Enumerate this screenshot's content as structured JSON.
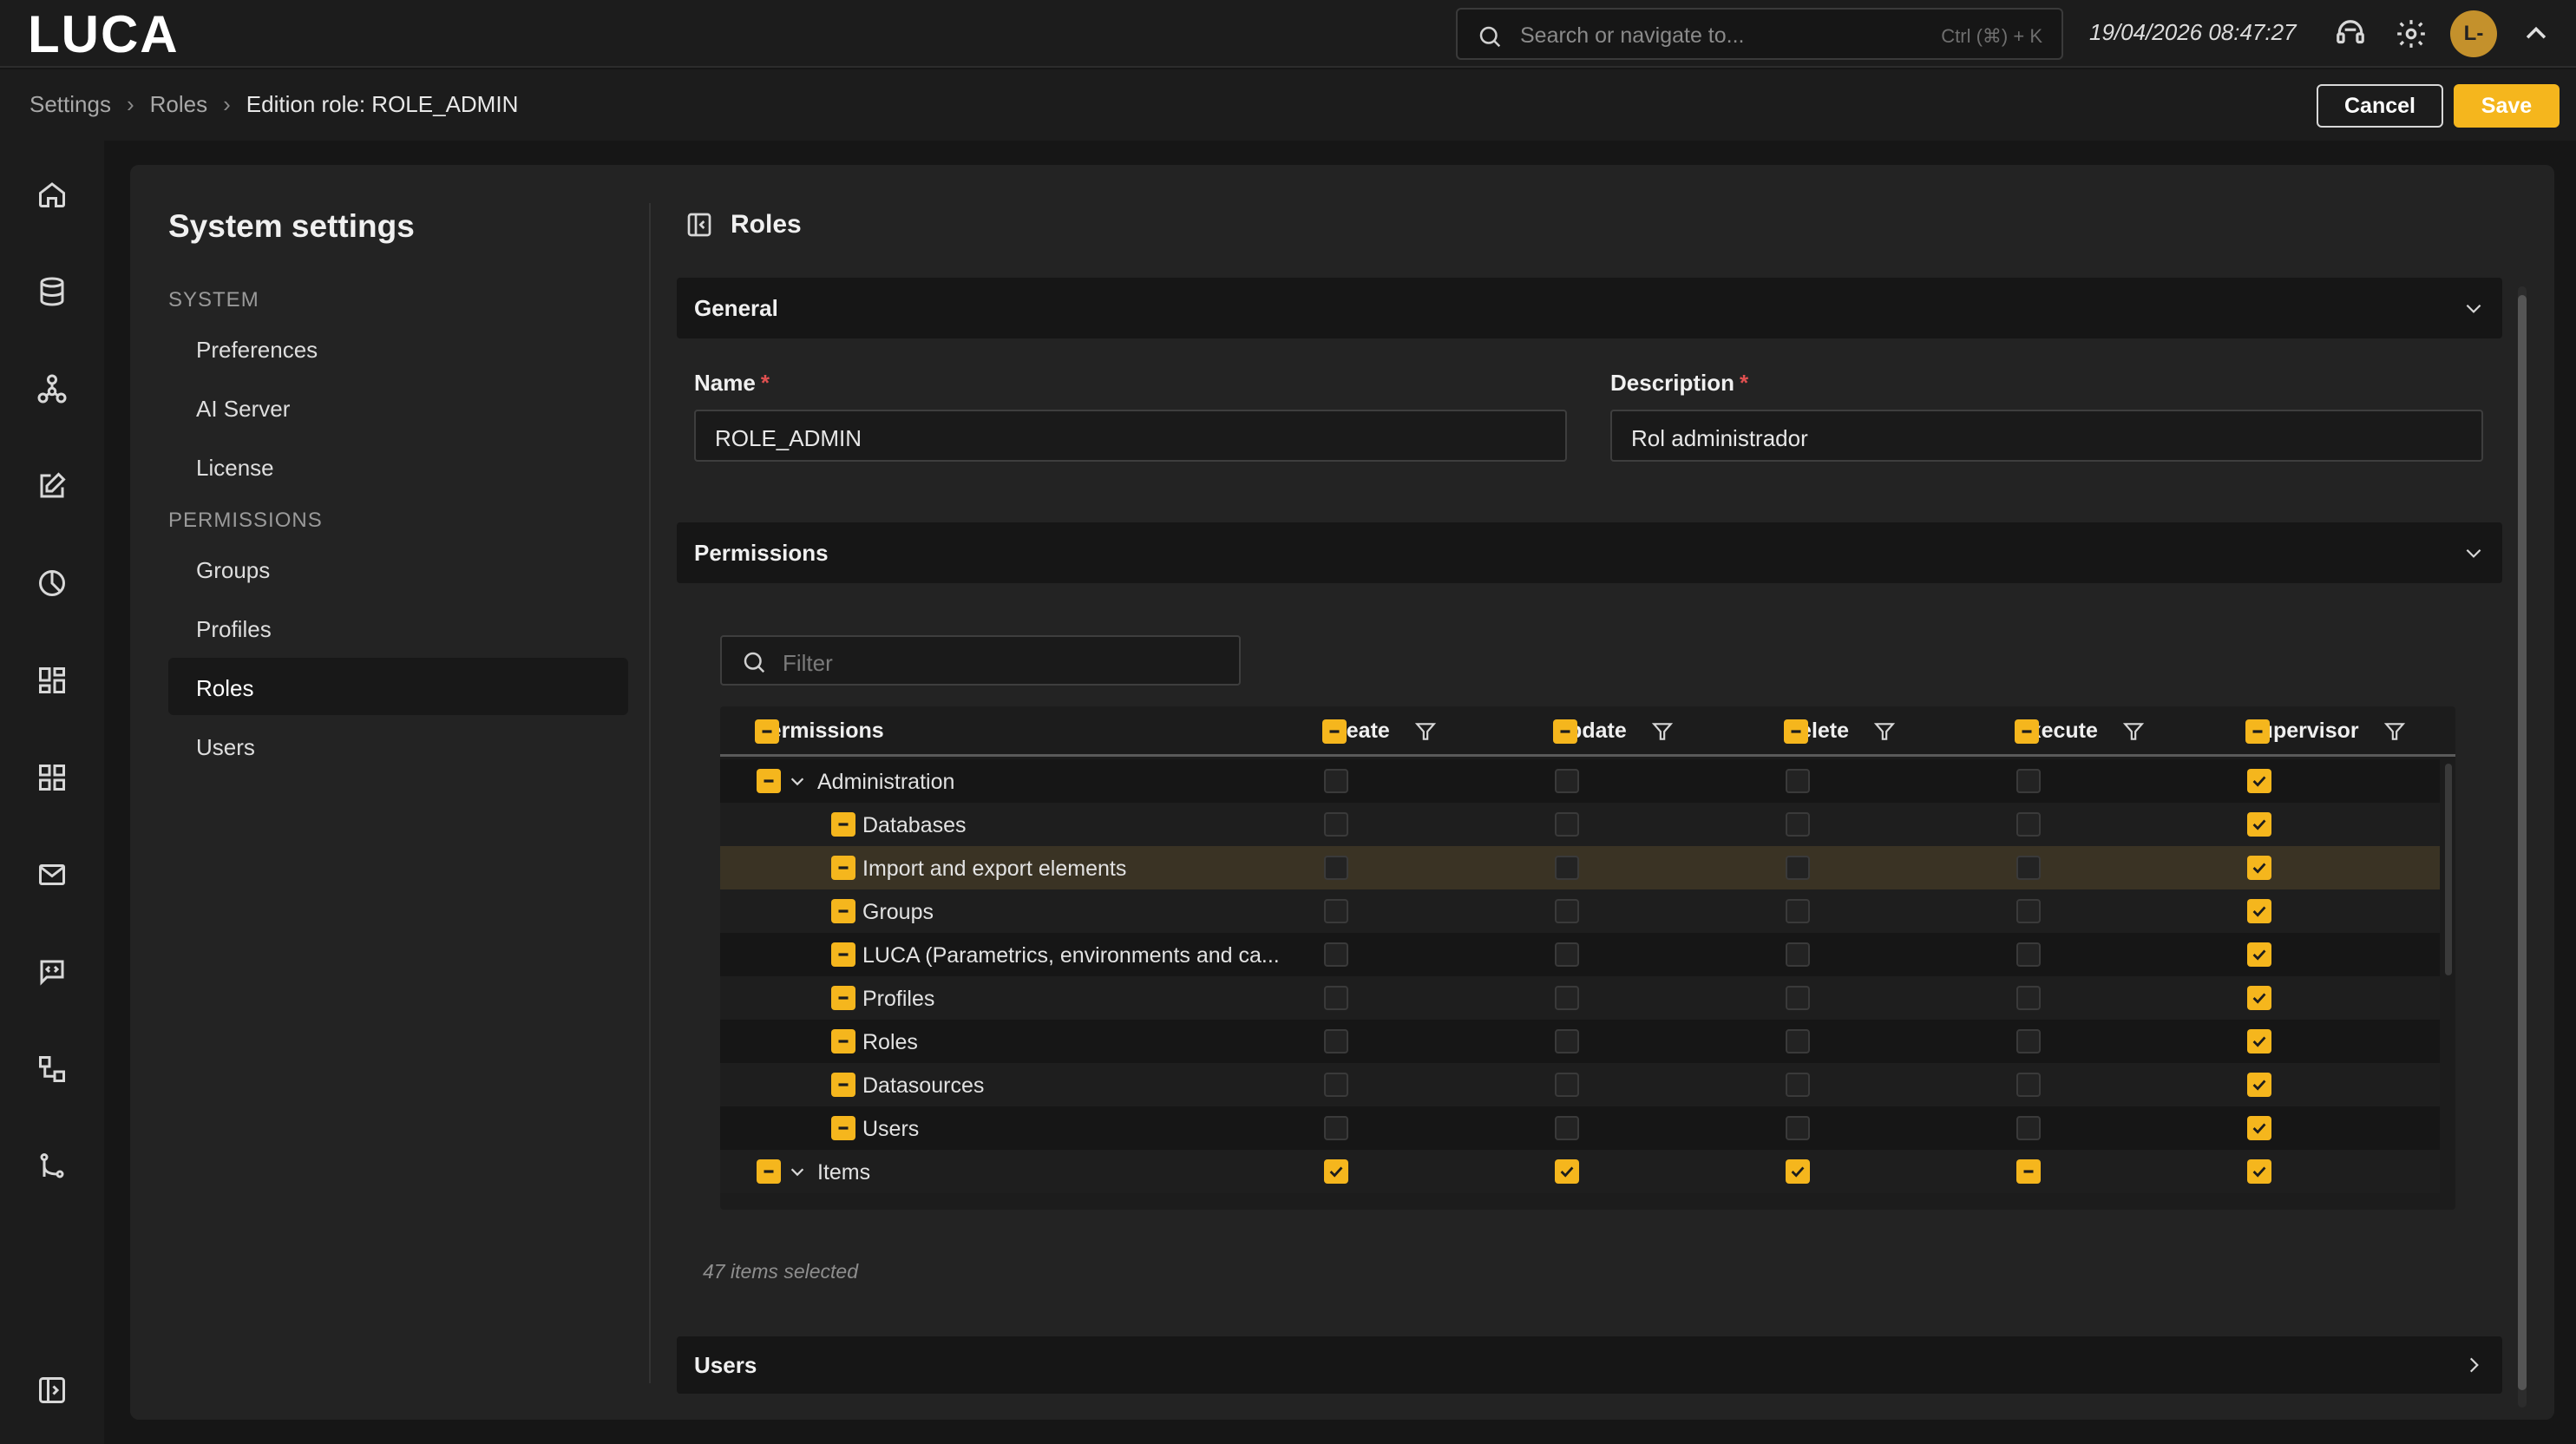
{
  "app": {
    "logo_text": "LUCA"
  },
  "search": {
    "placeholder": "Search or navigate to...",
    "shortcut": "Ctrl (⌘) + K"
  },
  "header": {
    "datetime": "19/04/2026 08:47:27",
    "avatar_initials": "L-"
  },
  "breadcrumb": {
    "items": [
      "Settings",
      "Roles"
    ],
    "current": "Edition role: ROLE_ADMIN"
  },
  "actions": {
    "cancel": "Cancel",
    "save": "Save"
  },
  "colors": {
    "accent": "#f5b61d",
    "background": "#161616",
    "panel": "#232323",
    "required": "#e05050"
  },
  "rail_icons": [
    "home-icon",
    "database-icon",
    "network-icon",
    "edit-icon",
    "chart-pie-icon",
    "dashboard-icon",
    "grid-icon",
    "mail-icon",
    "message-icon",
    "workflow-icon",
    "git-branch-icon",
    "sidebar-toggle-icon"
  ],
  "settings": {
    "title": "System settings",
    "sections": [
      {
        "label": "SYSTEM",
        "items": [
          "Preferences",
          "AI Server",
          "License"
        ]
      },
      {
        "label": "PERMISSIONS",
        "items": [
          "Groups",
          "Profiles",
          "Roles",
          "Users"
        ]
      }
    ],
    "active_item": "Roles"
  },
  "page": {
    "title": "Roles"
  },
  "general": {
    "title": "General",
    "name_label": "Name",
    "name_value": "ROLE_ADMIN",
    "description_label": "Description",
    "description_value": "Rol administrador",
    "required_marker": "*"
  },
  "permissions": {
    "title": "Permissions",
    "filter_placeholder": "Filter",
    "columns": [
      "Permissions",
      "Create",
      "Update",
      "Delete",
      "Execute",
      "Supervisor"
    ],
    "rows": [
      {
        "label": "Administration",
        "level": 0,
        "expanded": true,
        "state": "partial",
        "create": false,
        "update": false,
        "delete": false,
        "execute": false,
        "supervisor": true
      },
      {
        "label": "Databases",
        "level": 1,
        "state": "partial",
        "create": false,
        "update": false,
        "delete": false,
        "execute": false,
        "supervisor": true
      },
      {
        "label": "Import and export elements",
        "level": 1,
        "state": "partial",
        "create": false,
        "update": false,
        "delete": false,
        "execute": false,
        "supervisor": true,
        "hovered": true
      },
      {
        "label": "Groups",
        "level": 1,
        "state": "partial",
        "create": false,
        "update": false,
        "delete": false,
        "execute": false,
        "supervisor": true
      },
      {
        "label": "LUCA (Parametrics, environments and ca...",
        "level": 1,
        "state": "partial",
        "create": false,
        "update": false,
        "delete": false,
        "execute": false,
        "supervisor": true
      },
      {
        "label": "Profiles",
        "level": 1,
        "state": "partial",
        "create": false,
        "update": false,
        "delete": false,
        "execute": false,
        "supervisor": true
      },
      {
        "label": "Roles",
        "level": 1,
        "state": "partial",
        "create": false,
        "update": false,
        "delete": false,
        "execute": false,
        "supervisor": true
      },
      {
        "label": "Datasources",
        "level": 1,
        "state": "partial",
        "create": false,
        "update": false,
        "delete": false,
        "execute": false,
        "supervisor": true
      },
      {
        "label": "Users",
        "level": 1,
        "state": "partial",
        "create": false,
        "update": false,
        "delete": false,
        "execute": false,
        "supervisor": true
      },
      {
        "label": "Items",
        "level": 0,
        "expanded": true,
        "state": "partial",
        "create": true,
        "update": true,
        "delete": true,
        "execute": "partial",
        "supervisor": true
      }
    ],
    "selected_count": "47 items selected"
  },
  "users_section": {
    "title": "Users"
  }
}
